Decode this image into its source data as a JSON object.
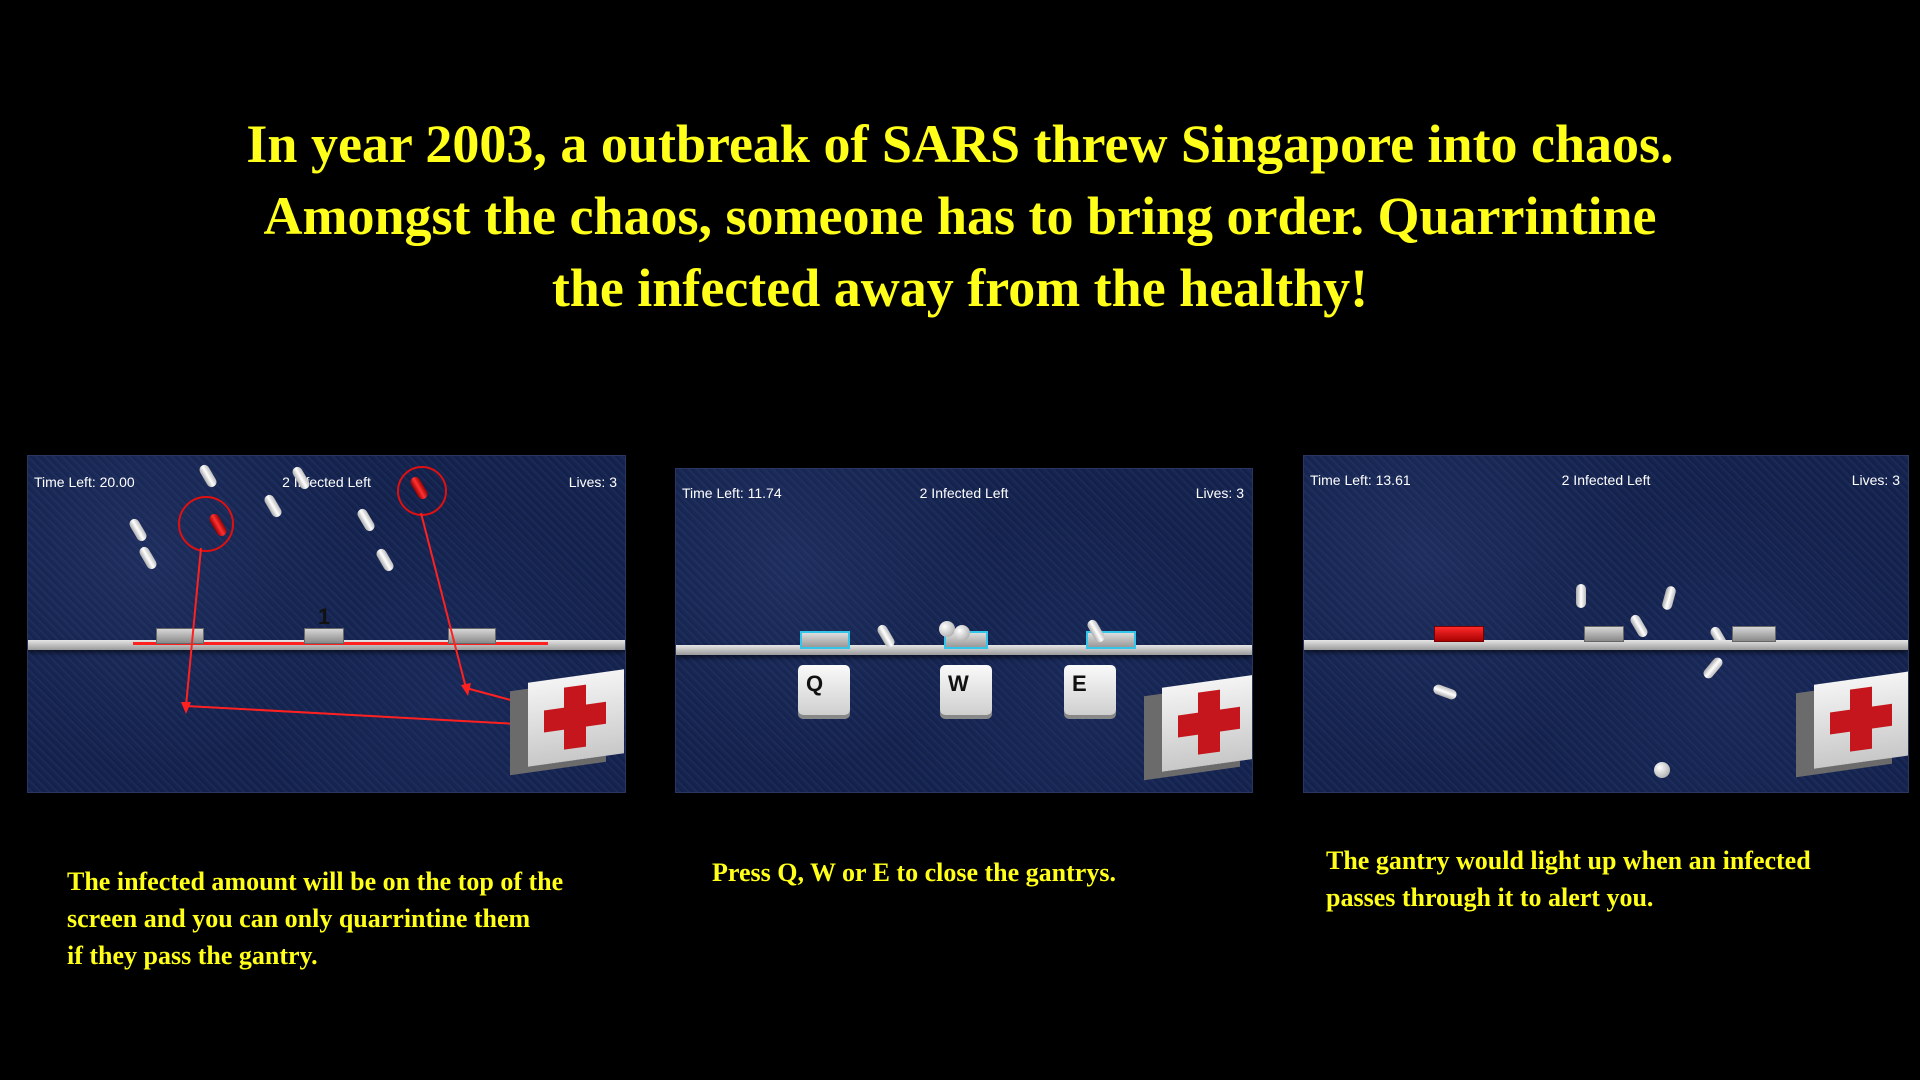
{
  "headline": {
    "line1": "In year 2003, a outbreak of SARS threw Singapore into chaos.",
    "line2": "Amongst the chaos, someone has to bring order. Quarrintine",
    "line3": "the infected away from the healthy!"
  },
  "panels": [
    {
      "time_left": "Time Left: 20.00",
      "infected_left": "2 Infected Left",
      "lives": "Lives: 3",
      "gate_number": "1",
      "caption": {
        "line1": "The infected amount will be on the top of the",
        "line2": "screen and you can only quarrintine them",
        "line3": "if they pass the gantry."
      }
    },
    {
      "time_left": "Time Left: 11.74",
      "infected_left": "2 Infected Left",
      "lives": "Lives: 3",
      "keys": [
        "Q",
        "W",
        "E"
      ],
      "caption": {
        "line1": "Press Q, W or E to close the gantrys."
      }
    },
    {
      "time_left": "Time Left: 13.61",
      "infected_left": "2 Infected Left",
      "lives": "Lives: 3",
      "caption": {
        "line1": "The gantry would light up when an infected",
        "line2": "passes through it to alert you."
      }
    }
  ],
  "colors": {
    "text_yellow": "#ffff1a",
    "annotation_red": "#ff2020",
    "gantry_alert": "#e01010",
    "gantry_closed_outline": "#33c6e8",
    "medkit_cross": "#c4161c"
  },
  "icons": [
    "medkit-icon",
    "gantry-icon",
    "pill-person-icon"
  ]
}
